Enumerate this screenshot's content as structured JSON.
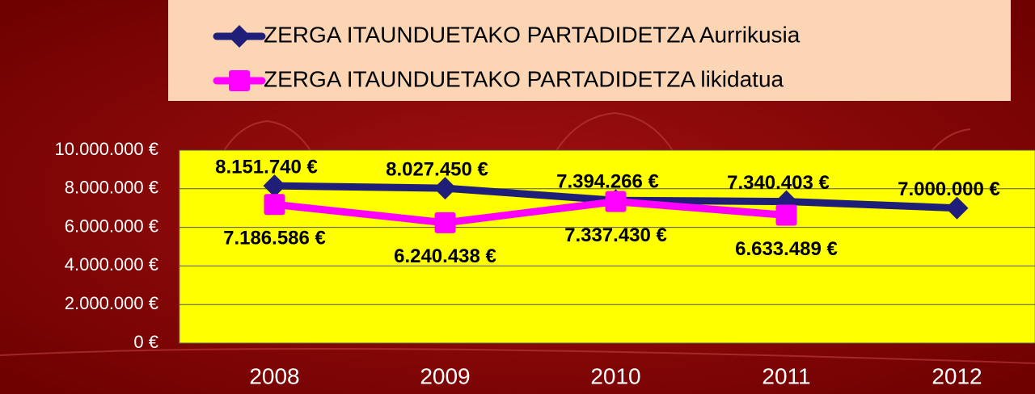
{
  "chart_data": {
    "type": "line",
    "categories": [
      "2008",
      "2009",
      "2010",
      "2011",
      "2012"
    ],
    "series": [
      {
        "name": "ZERGA ITAUNDUETAKO PARTADIDETZA Aurrikusia",
        "color": "#1f1f7a",
        "marker": "diamond",
        "values": [
          8151740,
          8027450,
          7394266,
          7340403,
          7000000
        ],
        "value_labels": [
          "8.151.740 €",
          "8.027.450 €",
          "7.394.266 €",
          "7.340.403 €",
          "7.000.000 €"
        ]
      },
      {
        "name": "ZERGA ITAUNDUETAKO PARTADIDETZA likidatua",
        "color": "#ff00ff",
        "marker": "square",
        "values": [
          7186586,
          6240438,
          7337430,
          6633489,
          null
        ],
        "value_labels": [
          "7.186.586 €",
          "6.240.438 €",
          "7.337.430 €",
          "6.633.489 €",
          null
        ]
      }
    ],
    "ylim": [
      0,
      10000000
    ],
    "yticks": [
      {
        "value": 0,
        "label": "0 €"
      },
      {
        "value": 2000000,
        "label": "2.000.000 €"
      },
      {
        "value": 4000000,
        "label": "4.000.000 €"
      },
      {
        "value": 6000000,
        "label": "6.000.000 €"
      },
      {
        "value": 8000000,
        "label": "8.000.000 €"
      },
      {
        "value": 10000000,
        "label": "10.000.000 €"
      }
    ],
    "grid": true,
    "legend": "top"
  }
}
